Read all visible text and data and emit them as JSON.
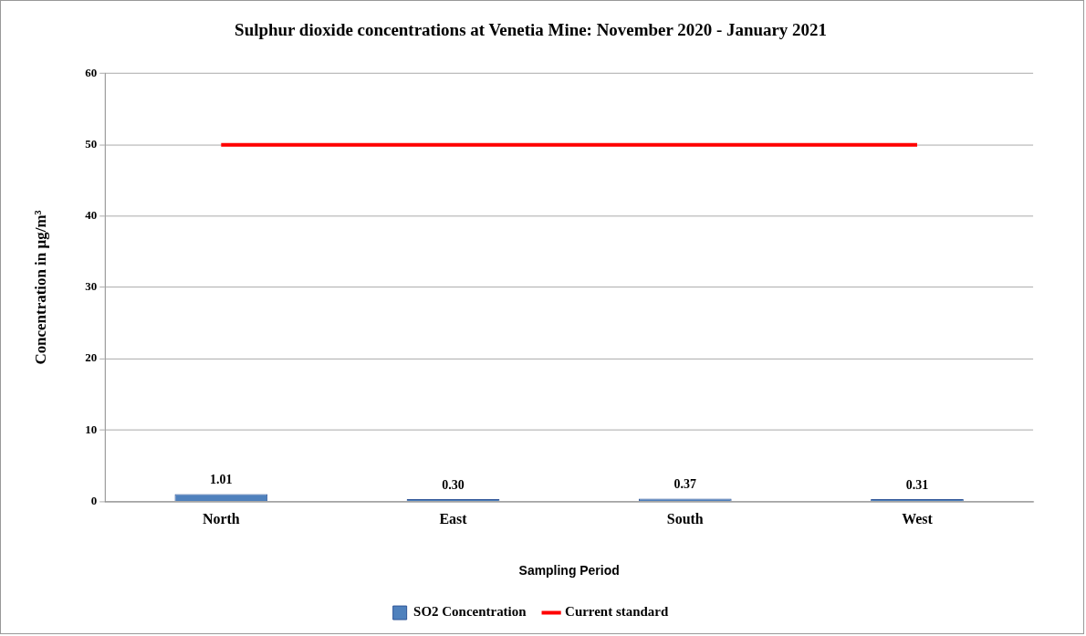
{
  "chart_data": {
    "type": "bar",
    "title": "Sulphur dioxide concentrations at Venetia Mine: November 2020 - January 2021",
    "xlabel": "Sampling Period",
    "ylabel": "Concentration in µg/m³",
    "categories": [
      "North",
      "East",
      "South",
      "West"
    ],
    "series": [
      {
        "name": "SO2 Concentration",
        "color": "#4f81bd",
        "values": [
          1.01,
          0.3,
          0.37,
          0.31
        ],
        "value_labels": [
          "1.01",
          "0.30",
          "0.37",
          "0.31"
        ]
      },
      {
        "name": "Current standard",
        "type": "line",
        "color": "#ff0000",
        "values": [
          50,
          50,
          50,
          50
        ],
        "marker": "none"
      }
    ],
    "ylim": [
      0,
      60
    ],
    "yticks": [
      0,
      10,
      20,
      30,
      40,
      50,
      60
    ],
    "grid": "y",
    "legend": "bottom"
  }
}
